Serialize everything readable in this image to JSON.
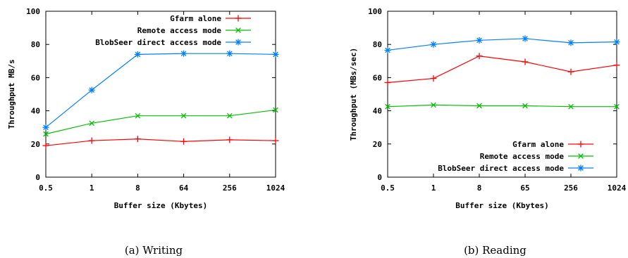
{
  "colors": {
    "gfarm": "#ff0000",
    "remote": "#00c000",
    "blobseer": "#0080ff"
  },
  "chart_data": [
    {
      "type": "line",
      "caption": "(a) Writing",
      "categories": [
        "0.5",
        "1",
        "8",
        "64",
        "256",
        "1024"
      ],
      "xlabel": "Buffer size (Kbytes)",
      "ylabel": "Throughput MB/s",
      "ylim": [
        0,
        100
      ],
      "yticks": [
        "0",
        "20",
        "40",
        "60",
        "80",
        "100"
      ],
      "legend_position": "top-right",
      "series": [
        {
          "name": "Gfarm alone",
          "values": [
            19,
            22,
            23,
            21.5,
            22.5,
            22
          ]
        },
        {
          "name": "Remote access mode",
          "values": [
            26,
            32.5,
            37,
            37,
            37,
            40.5
          ]
        },
        {
          "name": "BlobSeer direct access mode",
          "values": [
            30,
            52.5,
            74,
            74.5,
            74.5,
            74
          ]
        }
      ]
    },
    {
      "type": "line",
      "caption": "(b) Reading",
      "categories": [
        "0.5",
        "1",
        "8",
        "65",
        "256",
        "1024"
      ],
      "xlabel": "Buffer size (Kbytes)",
      "ylabel": "Throughput (MBs/sec)",
      "ylim": [
        0,
        100
      ],
      "yticks": [
        "0",
        "20",
        "40",
        "60",
        "80",
        "100"
      ],
      "legend_position": "bottom-right",
      "series": [
        {
          "name": "Gfarm alone",
          "values": [
            57,
            59.5,
            73,
            69.5,
            63.5,
            67.5
          ]
        },
        {
          "name": "Remote access mode",
          "values": [
            42.5,
            43.5,
            43,
            43,
            42.5,
            42.5
          ]
        },
        {
          "name": "BlobSeer direct access mode",
          "values": [
            76.5,
            80,
            82.5,
            83.5,
            81,
            81.5
          ]
        }
      ]
    }
  ]
}
